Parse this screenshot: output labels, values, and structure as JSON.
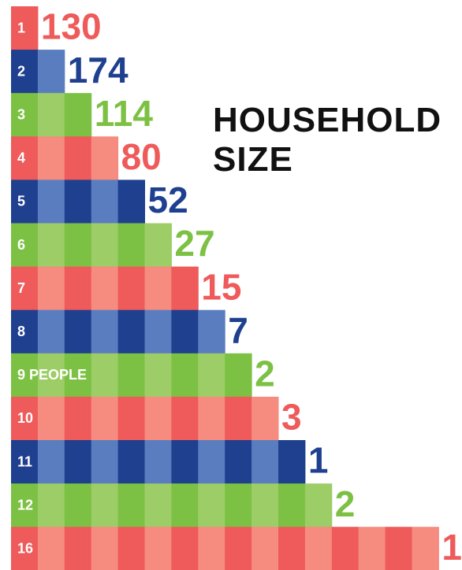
{
  "chart_data": {
    "type": "square-bar",
    "title": "HOUSEHOLD SIZE",
    "categories": [
      "1",
      "2",
      "3",
      "4",
      "5",
      "6",
      "7",
      "8",
      "9 PEOPLE",
      "10",
      "11",
      "12",
      "16"
    ],
    "sizes": [
      1,
      2,
      3,
      4,
      5,
      6,
      7,
      8,
      9,
      10,
      11,
      12,
      16
    ],
    "values": [
      130,
      174,
      114,
      80,
      52,
      27,
      15,
      7,
      2,
      3,
      1,
      2,
      1
    ],
    "row_colors": [
      [
        "#ef5a5a",
        "#f68b7f"
      ],
      [
        "#1f3f8f",
        "#5a7dc0"
      ],
      [
        "#7cc144",
        "#9dcd67"
      ]
    ]
  }
}
